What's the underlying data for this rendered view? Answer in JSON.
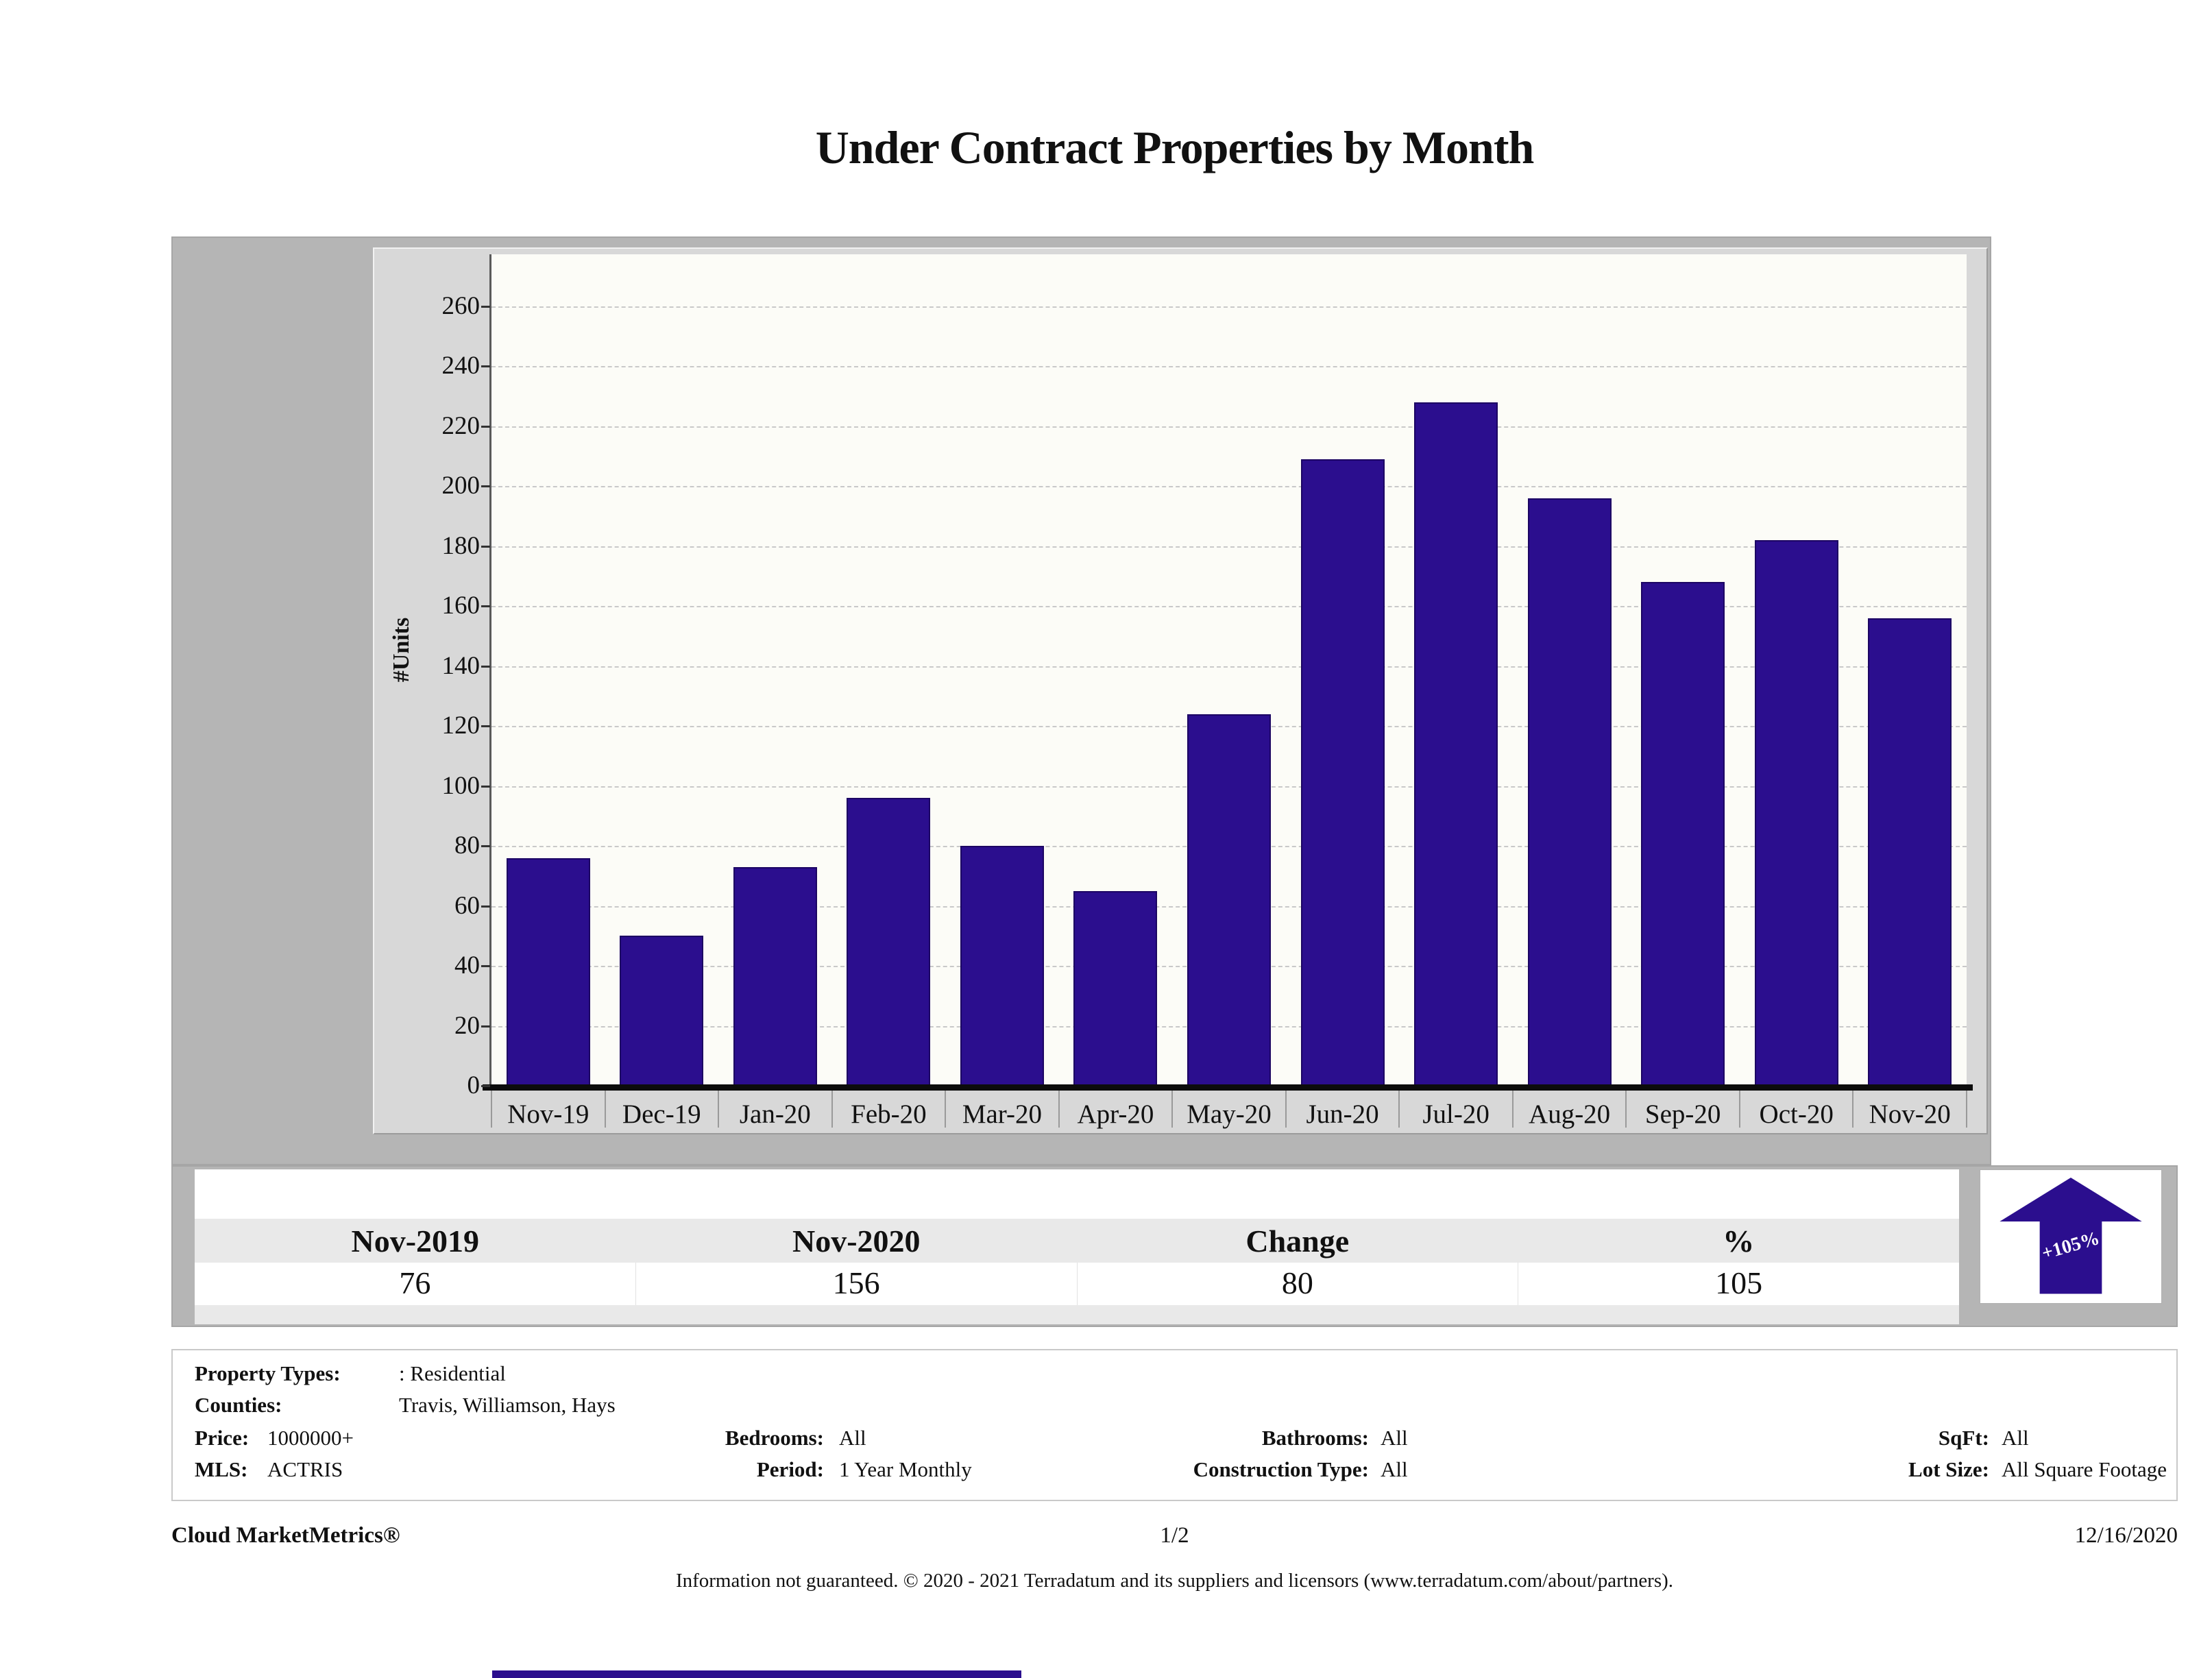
{
  "title": "Under Contract Properties by Month",
  "chart_data": {
    "type": "bar",
    "categories": [
      "Nov-19",
      "Dec-19",
      "Jan-20",
      "Feb-20",
      "Mar-20",
      "Apr-20",
      "May-20",
      "Jun-20",
      "Jul-20",
      "Aug-20",
      "Sep-20",
      "Oct-20",
      "Nov-20"
    ],
    "values": [
      76,
      50,
      73,
      96,
      80,
      65,
      124,
      209,
      228,
      196,
      168,
      182,
      156
    ],
    "title": "Under Contract Properties by Month",
    "xlabel": "",
    "ylabel": "#Units",
    "ylim": [
      0,
      260
    ],
    "ytick_step": 20,
    "grid": true,
    "legend": "none",
    "bar_color": "#2b0e8e"
  },
  "summary_table": {
    "headers": [
      "Nov-2019",
      "Nov-2020",
      "Change",
      "%"
    ],
    "values": [
      "76",
      "156",
      "80",
      "105"
    ]
  },
  "change_badge": {
    "label": "+105%",
    "color": "#2b0e8e"
  },
  "filters": {
    "property_types_label": "Property Types:",
    "property_types_value": ": Residential",
    "counties_label": "Counties:",
    "counties_value": "Travis, Williamson, Hays",
    "price_label": "Price:",
    "price_value": "1000000+",
    "bedrooms_label": "Bedrooms:",
    "bedrooms_value": "All",
    "bathrooms_label": "Bathrooms:",
    "bathrooms_value": "All",
    "sqft_label": "SqFt:",
    "sqft_value": "All",
    "mls_label": "MLS:",
    "mls_value": "ACTRIS",
    "period_label": "Period:",
    "period_value": "1 Year Monthly",
    "construction_label": "Construction Type:",
    "construction_value": "All",
    "lotsize_label": "Lot Size:",
    "lotsize_value": "All Square Footage"
  },
  "footer": {
    "brand": "Cloud MarketMetrics®",
    "page": "1/2",
    "date": "12/16/2020",
    "disclaimer": "Information not guaranteed. © 2020 - 2021 Terradatum and its suppliers and licensors (www.terradatum.com/about/partners)."
  }
}
